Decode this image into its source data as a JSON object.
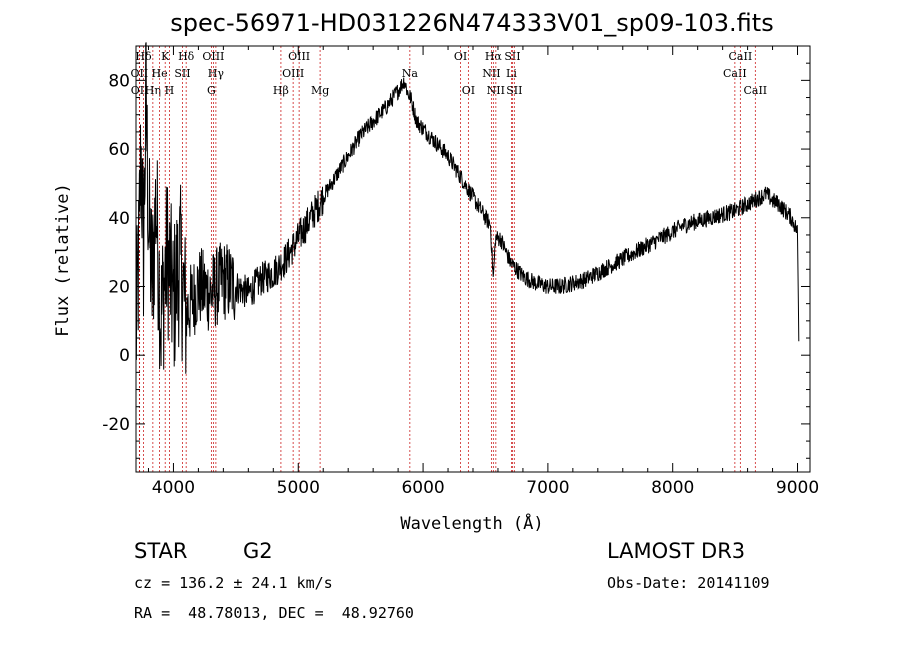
{
  "chart_data": {
    "type": "line",
    "title": "spec-56971-HD031226N474333V01_sp09-103.fits",
    "xlabel": "Wavelength (Å)",
    "ylabel": "Flux (relative)",
    "xlim": [
      3700,
      9100
    ],
    "ylim": [
      -34,
      90
    ],
    "xticks": [
      4000,
      5000,
      6000,
      7000,
      8000,
      9000
    ],
    "yticks": [
      -20,
      0,
      20,
      40,
      60,
      80
    ],
    "series": [
      {
        "name": "flux",
        "x": [
          3700,
          3720,
          3740,
          3760,
          3780,
          3800,
          3830,
          3860,
          3900,
          3950,
          4000,
          4050,
          4100,
          4200,
          4300,
          4400,
          4500,
          4600,
          4700,
          4800,
          4900,
          5000,
          5100,
          5200,
          5300,
          5400,
          5500,
          5600,
          5700,
          5800,
          5850,
          5880,
          5900,
          5950,
          6000,
          6100,
          6200,
          6300,
          6400,
          6500,
          6540,
          6563,
          6580,
          6620,
          6700,
          6800,
          6900,
          7000,
          7100,
          7200,
          7300,
          7400,
          7500,
          7600,
          7700,
          7800,
          7900,
          8000,
          8100,
          8200,
          8300,
          8400,
          8500,
          8600,
          8700,
          8750,
          8800,
          8850,
          8900,
          8950,
          9000,
          9010
        ],
        "y": [
          5,
          25,
          60,
          30,
          75,
          40,
          20,
          45,
          10,
          30,
          15,
          28,
          12,
          20,
          18,
          22,
          20,
          18,
          22,
          24,
          28,
          34,
          40,
          46,
          52,
          58,
          64,
          68,
          72,
          77,
          80,
          76,
          75,
          68,
          66,
          62,
          58,
          52,
          46,
          40,
          38,
          22,
          34,
          34,
          27,
          23,
          21,
          20,
          20,
          21,
          22,
          24,
          26,
          28,
          30,
          32,
          34,
          36,
          38,
          39,
          40,
          41,
          42,
          44,
          46,
          47,
          45,
          44,
          42,
          40,
          36,
          5
        ]
      }
    ],
    "spectral_lines": [
      {
        "label": "Hδ",
        "x": 3760,
        "row": 0
      },
      {
        "label": "OII",
        "x": 3727,
        "row": 1
      },
      {
        "label": "OII",
        "x": 3729,
        "row": 2
      },
      {
        "label": "Hη",
        "x": 3835,
        "row": 2
      },
      {
        "label": "He",
        "x": 3889,
        "row": 1
      },
      {
        "label": "K",
        "x": 3934,
        "row": 0
      },
      {
        "label": "H",
        "x": 3968,
        "row": 2
      },
      {
        "label": "SII",
        "x": 4072,
        "row": 1
      },
      {
        "label": "Hδ",
        "x": 4102,
        "row": 0
      },
      {
        "label": "OIII",
        "x": 4320,
        "row": 0
      },
      {
        "label": "Hγ",
        "x": 4340,
        "row": 1
      },
      {
        "label": "G",
        "x": 4304,
        "row": 2
      },
      {
        "label": "Hβ",
        "x": 4861,
        "row": 2
      },
      {
        "label": "OIII",
        "x": 4959,
        "row": 1
      },
      {
        "label": "OIII",
        "x": 5007,
        "row": 0
      },
      {
        "label": "Mg",
        "x": 5175,
        "row": 2
      },
      {
        "label": "Na",
        "x": 5894,
        "row": 1
      },
      {
        "label": "OI",
        "x": 6300,
        "row": 0
      },
      {
        "label": "OI",
        "x": 6363,
        "row": 2
      },
      {
        "label": "NII",
        "x": 6548,
        "row": 1
      },
      {
        "label": "Hα",
        "x": 6563,
        "row": 0
      },
      {
        "label": "NII",
        "x": 6583,
        "row": 2
      },
      {
        "label": "SII",
        "x": 6716,
        "row": 0
      },
      {
        "label": "Li",
        "x": 6708,
        "row": 1
      },
      {
        "label": "SII",
        "x": 6731,
        "row": 2
      },
      {
        "label": "CaII",
        "x": 8498,
        "row": 1
      },
      {
        "label": "CaII",
        "x": 8542,
        "row": 0
      },
      {
        "label": "CaII",
        "x": 8662,
        "row": 2
      }
    ]
  },
  "info": {
    "object_class": "STAR",
    "subclass": "G2",
    "survey": "LAMOST DR3",
    "cz": "cz = 136.2 ± 24.1 km/s",
    "obs_date": "Obs-Date: 20141109",
    "coords": "RA =  48.78013, DEC =  48.92760"
  }
}
